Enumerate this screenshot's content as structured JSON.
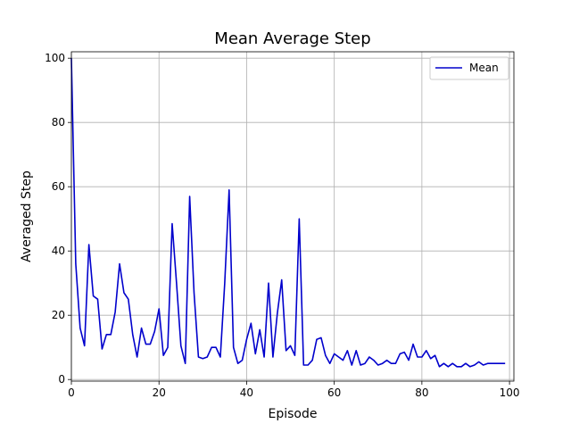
{
  "chart_data": {
    "type": "line",
    "title": "Mean Average Step",
    "xlabel": "Episode",
    "ylabel": "Averaged Step",
    "xlim": [
      0,
      101
    ],
    "ylim": [
      -0.5,
      102
    ],
    "xticks": [
      0,
      20,
      40,
      60,
      80,
      100
    ],
    "yticks": [
      0,
      20,
      40,
      60,
      80,
      100
    ],
    "grid": true,
    "legend_position": "top-right",
    "series": [
      {
        "name": "Mean",
        "color": "#0000cc",
        "x": [
          0,
          1,
          2,
          3,
          4,
          5,
          6,
          7,
          8,
          9,
          10,
          11,
          12,
          13,
          14,
          15,
          16,
          17,
          18,
          19,
          20,
          21,
          22,
          23,
          24,
          25,
          26,
          27,
          28,
          29,
          30,
          31,
          32,
          33,
          34,
          35,
          36,
          37,
          38,
          39,
          40,
          41,
          42,
          43,
          44,
          45,
          46,
          47,
          48,
          49,
          50,
          51,
          52,
          53,
          54,
          55,
          56,
          57,
          58,
          59,
          60,
          61,
          62,
          63,
          64,
          65,
          66,
          67,
          68,
          69,
          70,
          71,
          72,
          73,
          74,
          75,
          76,
          77,
          78,
          79,
          80,
          81,
          82,
          83,
          84,
          85,
          86,
          87,
          88,
          89,
          90,
          91,
          92,
          93,
          94,
          95,
          96,
          97,
          98,
          99
        ],
        "values": [
          100,
          36,
          16,
          10.5,
          42,
          26,
          25,
          9.5,
          14,
          14,
          21,
          36,
          27,
          25,
          14,
          7,
          16,
          11,
          11,
          15,
          22,
          7.5,
          10,
          48.5,
          30,
          10.5,
          5,
          57,
          27,
          7,
          6.5,
          7,
          10,
          10,
          7,
          30,
          59,
          10,
          5,
          6,
          12.5,
          17.5,
          8,
          15.5,
          7,
          30,
          7,
          20.5,
          31,
          9,
          10.5,
          7.5,
          50,
          4.5,
          4.5,
          6,
          12.5,
          13,
          7.5,
          5,
          8,
          7,
          6,
          9,
          4.5,
          9,
          4.5,
          5,
          7,
          6,
          4.5,
          5,
          6,
          5,
          5,
          8,
          8.5,
          6,
          11,
          7,
          7,
          9,
          6.5,
          7.5,
          4,
          5,
          4,
          5,
          4,
          4,
          5,
          4,
          4.5,
          5.5,
          4.5,
          5,
          5,
          5,
          5,
          5
        ]
      }
    ]
  }
}
